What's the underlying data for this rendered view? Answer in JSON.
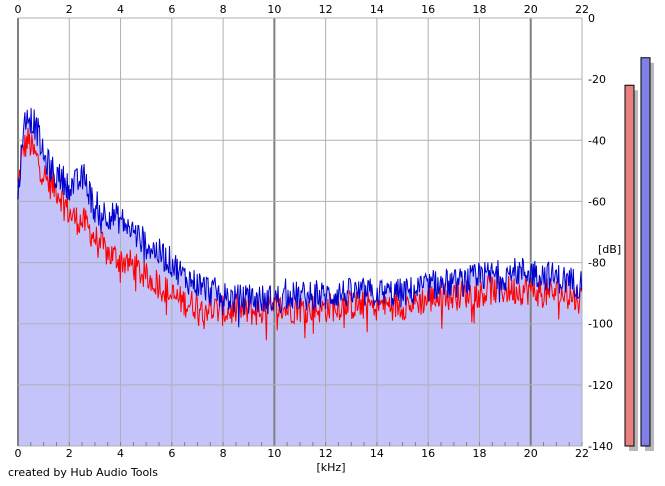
{
  "credit": "created by Hub Audio Tools",
  "chart_data": {
    "type": "area",
    "xlabel": "[kHz]",
    "ylabel": "[dB]",
    "xlim": [
      0,
      22
    ],
    "ylim": [
      -140,
      0
    ],
    "x_ticks": [
      "0",
      "2",
      "4",
      "6",
      "8",
      "10",
      "12",
      "14",
      "16",
      "18",
      "20",
      "22"
    ],
    "y_ticks": [
      "0",
      "-20",
      "-40",
      "-60",
      "-80",
      "-100",
      "-120",
      "-140"
    ],
    "x_major_every": 2,
    "x_heavy_ticks": [
      0,
      10,
      20
    ],
    "grid": true,
    "colors": {
      "plot_bg": "#ffffff",
      "area_fill": "#c4c4fa",
      "grid": "#b0b0b0",
      "grid_heavy": "#808080",
      "left_channel": "#ff0000",
      "right_channel": "#0000cc",
      "meter_left": "#e88080",
      "meter_right": "#8080e8",
      "meter_shadow": "#b8b8b8"
    },
    "series": [
      {
        "x": [
          0,
          0.2,
          0.4,
          0.6,
          0.8,
          1,
          1.2,
          1.5,
          1.8,
          2,
          2.3,
          2.6,
          3,
          3.5,
          4,
          4.5,
          5,
          5.5,
          6,
          6.5,
          7,
          7.5,
          8,
          8.5,
          9,
          9.5,
          10,
          10.5,
          11,
          11.5,
          12,
          12.5,
          13,
          13.5,
          14,
          14.5,
          15,
          15.5,
          16,
          16.5,
          17,
          17.5,
          18,
          18.5,
          19,
          19.5,
          20,
          20.5,
          21,
          21.5,
          22
        ],
        "values": [
          -55,
          -43,
          -40,
          -44,
          -47,
          -51,
          -54,
          -56,
          -60,
          -64,
          -66,
          -67,
          -72,
          -77,
          -79,
          -81,
          -85,
          -87,
          -91,
          -93,
          -94,
          -95,
          -96,
          -96,
          -96,
          -96,
          -95,
          -95,
          -95,
          -95,
          -95,
          -94,
          -94,
          -94,
          -94,
          -94,
          -94,
          -93,
          -92,
          -91,
          -91,
          -90,
          -90,
          -89,
          -89,
          -89,
          -89,
          -90,
          -90,
          -91,
          -92
        ]
      },
      {
        "x": [
          0,
          0.2,
          0.4,
          0.6,
          0.8,
          1,
          1.2,
          1.5,
          1.8,
          2,
          2.3,
          2.6,
          3,
          3.5,
          4,
          4.5,
          5,
          5.5,
          6,
          6.5,
          7,
          7.5,
          8,
          8.5,
          9,
          9.5,
          10,
          10.5,
          11,
          11.5,
          12,
          12.5,
          13,
          13.5,
          14,
          14.5,
          15,
          15.5,
          16,
          16.5,
          17,
          17.5,
          18,
          18.5,
          19,
          19.5,
          20,
          20.5,
          21,
          21.5,
          22
        ],
        "values": [
          -58,
          -36,
          -32,
          -34,
          -38,
          -46,
          -48,
          -52,
          -53,
          -55,
          -54,
          -52,
          -63,
          -64,
          -66,
          -70,
          -74,
          -77,
          -80,
          -85,
          -87,
          -89,
          -91,
          -92,
          -92,
          -92,
          -92,
          -91,
          -91,
          -91,
          -91,
          -90,
          -90,
          -90,
          -90,
          -90,
          -90,
          -89,
          -88,
          -87,
          -87,
          -86,
          -85,
          -84,
          -84,
          -83,
          -83,
          -84,
          -85,
          -86,
          -87
        ]
      }
    ],
    "meters": {
      "left_db": -22,
      "right_db": -13
    }
  }
}
